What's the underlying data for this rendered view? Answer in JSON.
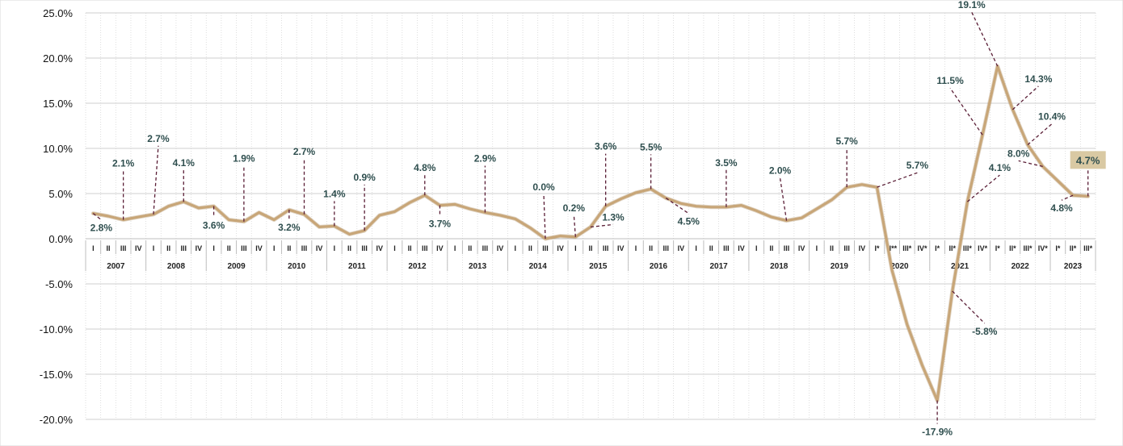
{
  "chart_data": {
    "type": "line",
    "title": "",
    "xlabel": "",
    "ylabel": "",
    "ylim": [
      -20,
      25
    ],
    "yticks": [
      "25.0%",
      "20.0%",
      "15.0%",
      "10.0%",
      "5.0%",
      "0.0%",
      "-5.0%",
      "-10.0%",
      "-15.0%",
      "-20.0%"
    ],
    "ytick_values": [
      25,
      20,
      15,
      10,
      5,
      0,
      -5,
      -10,
      -15,
      -20
    ],
    "quarters": [
      "I",
      "II",
      "III",
      "IV",
      "I",
      "II",
      "III",
      "IV",
      "I",
      "II",
      "III",
      "IV",
      "I",
      "II",
      "III",
      "IV",
      "I",
      "II",
      "III",
      "IV",
      "I",
      "II",
      "III",
      "IV",
      "I",
      "II",
      "III",
      "IV",
      "I",
      "II",
      "III",
      "IV",
      "I",
      "II",
      "III",
      "IV",
      "I",
      "II",
      "III",
      "IV",
      "I",
      "II",
      "III",
      "IV",
      "I",
      "II",
      "III",
      "IV",
      "I",
      "II",
      "III",
      "IV",
      "I*",
      "II**",
      "III*",
      "IV*",
      "I*",
      "II*",
      "III*",
      "IV*",
      "I*",
      "II*",
      "III*",
      "IV*",
      "I*",
      "II*",
      "III*"
    ],
    "years": [
      "2007",
      "2008",
      "2009",
      "2010",
      "2011",
      "2012",
      "2013",
      "2014",
      "2015",
      "2016",
      "2017",
      "2018",
      "2019",
      "2020",
      "2021",
      "2022",
      "2023"
    ],
    "values": [
      2.8,
      2.5,
      2.1,
      2.4,
      2.7,
      3.6,
      4.1,
      3.4,
      3.6,
      2.1,
      1.9,
      2.9,
      2.1,
      3.2,
      2.7,
      1.3,
      1.4,
      0.5,
      0.9,
      2.6,
      3.0,
      4.0,
      4.8,
      3.7,
      3.8,
      3.3,
      2.9,
      2.6,
      2.2,
      1.2,
      0.0,
      0.3,
      0.2,
      1.3,
      3.6,
      4.4,
      5.1,
      5.5,
      4.5,
      3.9,
      3.6,
      3.5,
      3.5,
      3.7,
      3.1,
      2.4,
      2.0,
      2.3,
      3.3,
      4.3,
      5.7,
      6.0,
      5.7,
      -3.5,
      -9.5,
      -14.0,
      -17.9,
      -5.8,
      4.1,
      11.5,
      19.1,
      14.3,
      10.4,
      8.0,
      6.4,
      4.8,
      4.7
    ],
    "series_color": "#c8a678",
    "highlight_color": "#d9c9a3",
    "data_labels": [
      {
        "i": 0,
        "text": "2.8%"
      },
      {
        "i": 2,
        "text": "2.1%"
      },
      {
        "i": 4,
        "text": "2.7%"
      },
      {
        "i": 6,
        "text": "4.1%"
      },
      {
        "i": 8,
        "text": "3.6%"
      },
      {
        "i": 10,
        "text": "1.9%"
      },
      {
        "i": 13,
        "text": "3.2%"
      },
      {
        "i": 14,
        "text": "2.7%"
      },
      {
        "i": 16,
        "text": "1.4%"
      },
      {
        "i": 18,
        "text": "0.9%"
      },
      {
        "i": 22,
        "text": "4.8%"
      },
      {
        "i": 23,
        "text": "3.7%"
      },
      {
        "i": 26,
        "text": "2.9%"
      },
      {
        "i": 30,
        "text": "0.0%"
      },
      {
        "i": 32,
        "text": "0.2%"
      },
      {
        "i": 33,
        "text": "1.3%"
      },
      {
        "i": 34,
        "text": "3.6%"
      },
      {
        "i": 37,
        "text": "5.5%"
      },
      {
        "i": 38,
        "text": "4.5%"
      },
      {
        "i": 42,
        "text": "3.5%"
      },
      {
        "i": 46,
        "text": "2.0%"
      },
      {
        "i": 50,
        "text": "5.7%"
      },
      {
        "i": 52,
        "text": "5.7%"
      },
      {
        "i": 56,
        "text": "-17.9%"
      },
      {
        "i": 57,
        "text": "-5.8%"
      },
      {
        "i": 58,
        "text": "4.1%"
      },
      {
        "i": 59,
        "text": "11.5%"
      },
      {
        "i": 60,
        "text": "19.1%"
      },
      {
        "i": 61,
        "text": "14.3%"
      },
      {
        "i": 62,
        "text": "10.4%"
      },
      {
        "i": 63,
        "text": "8.0%"
      },
      {
        "i": 65,
        "text": "4.8%"
      },
      {
        "i": 66,
        "text": "4.7%",
        "highlight": true
      }
    ]
  }
}
